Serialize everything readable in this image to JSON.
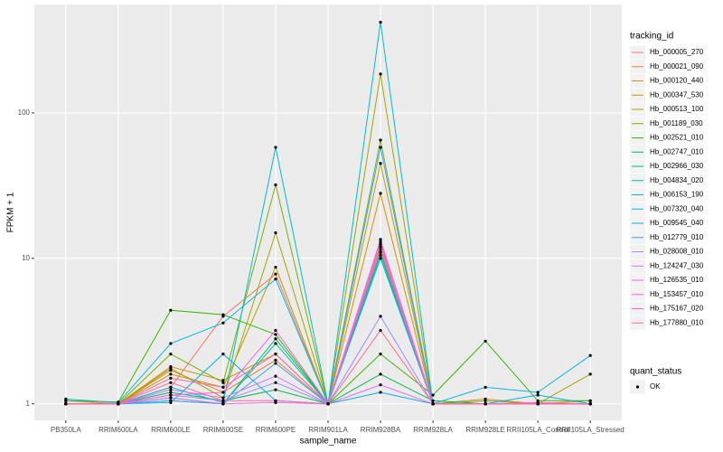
{
  "chart_data": {
    "type": "line",
    "log_y": true,
    "grid": true,
    "x_label": "sample_name",
    "y_label": "FPKM + 1",
    "legend_title": "tracking_id",
    "legend_position": "right",
    "point_color": "#000000",
    "quant_status_legend": {
      "title": "quant_status",
      "labels": [
        "OK"
      ]
    },
    "categories": [
      "PB350LA",
      "RRIM600LA",
      "RRIM600LE",
      "RRIM600SE",
      "RRIM600PE",
      "RRIM901LA",
      "RRIM928BA",
      "RRIM928LA",
      "RRIM928LE",
      "RRII105LA_Control",
      "RRII105LA_Stressed"
    ],
    "ylim": [
      0.77,
      556
    ],
    "yticks": [
      1,
      10,
      100
    ],
    "series": [
      {
        "name": "Hb_000005_270",
        "color": "#F8766D",
        "values": [
          1,
          1,
          1.3,
          4.0,
          7.8,
          1,
          13,
          1,
          1,
          1,
          1
        ]
      },
      {
        "name": "Hb_000021_090",
        "color": "#EA8331",
        "values": [
          1.05,
          1,
          1.7,
          1.2,
          2.0,
          1,
          12,
          1,
          1.08,
          1,
          1
        ]
      },
      {
        "name": "Hb_000120_440",
        "color": "#D89000",
        "values": [
          1,
          1,
          1.8,
          1.45,
          2.2,
          1,
          28,
          1,
          1,
          1,
          1
        ]
      },
      {
        "name": "Hb_000347_530",
        "color": "#C09B00",
        "values": [
          1,
          1,
          1.6,
          1.3,
          8.7,
          1,
          45,
          1,
          1,
          1,
          1.05
        ]
      },
      {
        "name": "Hb_000513_100",
        "color": "#A3A500",
        "values": [
          1,
          1,
          1.75,
          1.1,
          15,
          1,
          185,
          1,
          1,
          1,
          1.6
        ]
      },
      {
        "name": "Hb_001189_030",
        "color": "#7CAE00",
        "values": [
          1,
          1,
          2.2,
          1.4,
          32,
          1,
          65,
          1,
          1.05,
          1,
          1
        ]
      },
      {
        "name": "Hb_002521_010",
        "color": "#39B600",
        "values": [
          1.05,
          1.03,
          4.4,
          4.1,
          3.0,
          1,
          2.2,
          1.15,
          2.7,
          1.05,
          1.05
        ]
      },
      {
        "name": "Hb_002747_010",
        "color": "#00BB4E",
        "values": [
          1,
          1,
          1.2,
          1.05,
          1.25,
          1,
          1.6,
          1.05,
          1,
          1,
          1
        ]
      },
      {
        "name": "Hb_002966_030",
        "color": "#00BF7D",
        "values": [
          1,
          1,
          1.1,
          1,
          2.8,
          1,
          11,
          1,
          1,
          1,
          1
        ]
      },
      {
        "name": "Hb_004834_020",
        "color": "#00C1A3",
        "values": [
          1,
          1,
          1.05,
          1,
          2.6,
          1,
          10.5,
          1,
          1,
          1,
          1
        ]
      },
      {
        "name": "Hb_006153_190",
        "color": "#00BFC4",
        "values": [
          1,
          1,
          1.3,
          1.02,
          58,
          1,
          420,
          1,
          1,
          1,
          1
        ]
      },
      {
        "name": "Hb_007320_040",
        "color": "#00BAE0",
        "values": [
          1.08,
          1.02,
          2.6,
          3.6,
          7.2,
          1,
          10,
          1,
          1.3,
          1.2,
          2.15
        ]
      },
      {
        "name": "Hb_009545_040",
        "color": "#00B0F6",
        "values": [
          1,
          1,
          1.02,
          2.2,
          1.05,
          1,
          1.2,
          1,
          1,
          1.15,
          1
        ]
      },
      {
        "name": "Hb_012779_010",
        "color": "#35A2FF",
        "values": [
          1,
          1,
          1.05,
          1,
          1.9,
          1,
          58,
          1,
          1,
          1,
          1
        ]
      },
      {
        "name": "Hb_028008_010",
        "color": "#9590FF",
        "values": [
          1,
          1,
          1.15,
          1.05,
          1.4,
          1,
          4.0,
          1,
          1,
          1,
          1
        ]
      },
      {
        "name": "Hb_124247_030",
        "color": "#C77CFF",
        "values": [
          1,
          1,
          1.25,
          1.1,
          1.55,
          1,
          13.5,
          1,
          1,
          1,
          1
        ]
      },
      {
        "name": "Hb_126535_010",
        "color": "#E76BF3",
        "values": [
          1,
          1,
          1.1,
          1,
          1.02,
          1,
          1.35,
          1,
          1,
          1,
          1
        ]
      },
      {
        "name": "Hb_153457_010",
        "color": "#FA62DB",
        "values": [
          1,
          1,
          1.15,
          1.2,
          3.2,
          1,
          12.5,
          1,
          1,
          1,
          1
        ]
      },
      {
        "name": "Hb_175167_020",
        "color": "#FF62BC",
        "values": [
          1,
          1,
          1.5,
          1.3,
          2.2,
          1,
          11.5,
          1,
          1,
          1.02,
          1
        ]
      },
      {
        "name": "Hb_177880_010",
        "color": "#FF6C91",
        "values": [
          1,
          1,
          1.4,
          1.05,
          1.05,
          1,
          3.2,
          1,
          1,
          1,
          1
        ]
      }
    ]
  }
}
